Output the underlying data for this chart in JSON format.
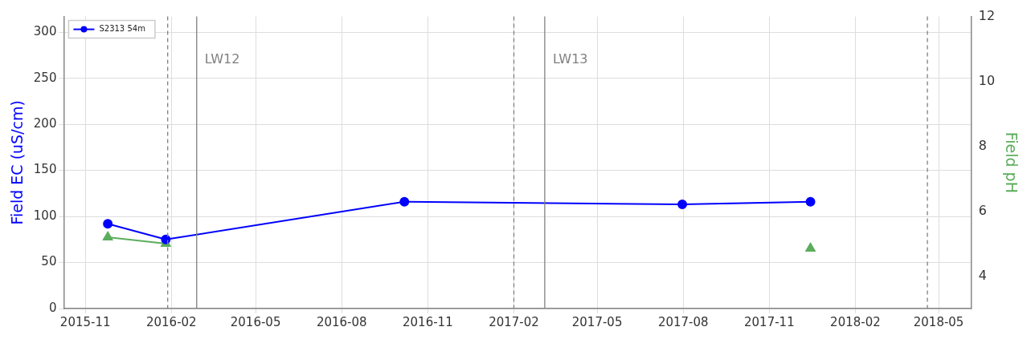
{
  "chart_data": {
    "type": "line",
    "ylabel": "Field EC (uS/cm)",
    "y2label": "Field pH",
    "xlim": [
      "2015-10-09",
      "2018-06-05"
    ],
    "xticks": [
      "2015-11",
      "2016-02",
      "2016-05",
      "2016-08",
      "2016-11",
      "2017-02",
      "2017-05",
      "2017-08",
      "2017-11",
      "2018-02",
      "2018-05"
    ],
    "ylim": [
      0,
      317
    ],
    "yticks": [
      0,
      50,
      100,
      150,
      200,
      250,
      300
    ],
    "y2lim": [
      3,
      12
    ],
    "y2ticks": [
      4,
      6,
      8,
      10,
      12
    ],
    "series": [
      {
        "name": "S2313 54m",
        "color": "#0000ff",
        "marker": "circle",
        "x": [
          "2015-11-25",
          "2016-01-26",
          "2016-10-07",
          "2017-07-31",
          "2017-12-15"
        ],
        "values": [
          92,
          75,
          116,
          113,
          116
        ]
      },
      {
        "color": "#5cad5c",
        "marker": "triangle",
        "axis": "y2",
        "x": [
          "2015-11-25",
          "2016-01-26",
          "2016-10-07",
          "2017-07-31",
          "2017-12-15"
        ],
        "values": [
          5.2,
          5.0,
          null,
          null,
          4.85
        ]
      }
    ],
    "ref_lines": [
      {
        "axis": "x",
        "value": "2016-01-28",
        "color": "#808080",
        "line_style": "dashed"
      },
      {
        "axis": "x",
        "value": "2016-02-28",
        "label": "LW12",
        "color": "#808080",
        "line_style": "solid"
      },
      {
        "axis": "x",
        "value": "2017-02-01",
        "color": "#808080",
        "line_style": "dashed"
      },
      {
        "axis": "x",
        "value": "2017-03-06",
        "label": "LW13",
        "color": "#808080",
        "line_style": "solid"
      },
      {
        "axis": "x",
        "value": "2018-04-19",
        "color": "#808080",
        "line_style": "dashed"
      }
    ],
    "grid": true,
    "legend": "top left"
  }
}
